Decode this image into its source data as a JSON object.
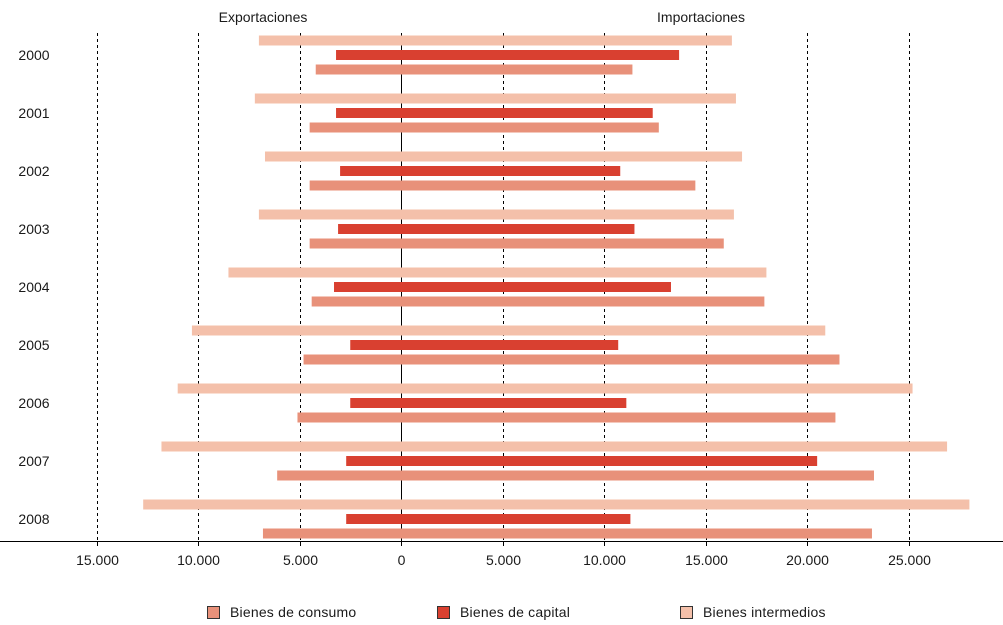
{
  "chart_data": {
    "type": "bar",
    "orientation": "horizontal",
    "left_header": "Exportaciones",
    "right_header": "Importaciones",
    "categories": [
      "2000",
      "2001",
      "2002",
      "2003",
      "2004",
      "2005",
      "2006",
      "2007",
      "2008"
    ],
    "x_range": [
      -15000,
      28500
    ],
    "x_ticks": [
      {
        "value": -15000,
        "label": "15.000"
      },
      {
        "value": -10000,
        "label": "10.000"
      },
      {
        "value": -5000,
        "label": "5.000"
      },
      {
        "value": 0,
        "label": "0"
      },
      {
        "value": 5000,
        "label": "5.000"
      },
      {
        "value": 10000,
        "label": "10.000"
      },
      {
        "value": 15000,
        "label": "15.000"
      },
      {
        "value": 20000,
        "label": "20.000"
      },
      {
        "value": 25000,
        "label": "25.000"
      }
    ],
    "grid": "vertical-dashed",
    "legend_position": "bottom",
    "series": [
      {
        "name": "Bienes intermedios",
        "color": "#f4c0aa",
        "exports": [
          7000,
          7200,
          6700,
          7000,
          8500,
          10300,
          11000,
          11800,
          12700
        ],
        "imports": [
          16300,
          16500,
          16800,
          16400,
          18000,
          20900,
          25200,
          26900,
          28000
        ]
      },
      {
        "name": "Bienes de capital",
        "color": "#d94030",
        "exports": [
          3200,
          3200,
          3000,
          3100,
          3300,
          2500,
          2500,
          2700,
          2700
        ],
        "imports": [
          13700,
          12400,
          10800,
          11500,
          13300,
          10700,
          11100,
          20500,
          11300
        ]
      },
      {
        "name": "Bienes de consumo",
        "color": "#e8917a",
        "exports": [
          4200,
          4500,
          4500,
          4500,
          4400,
          4800,
          5100,
          6100,
          6800
        ],
        "imports": [
          11400,
          12700,
          14500,
          15900,
          17900,
          21600,
          21400,
          23300,
          23200
        ]
      }
    ]
  },
  "legend": [
    {
      "label": "Bienes de consumo",
      "color": "#e8917a"
    },
    {
      "label": "Bienes de capital",
      "color": "#d94030"
    },
    {
      "label": "Bienes intermedios",
      "color": "#f4c0aa"
    }
  ]
}
